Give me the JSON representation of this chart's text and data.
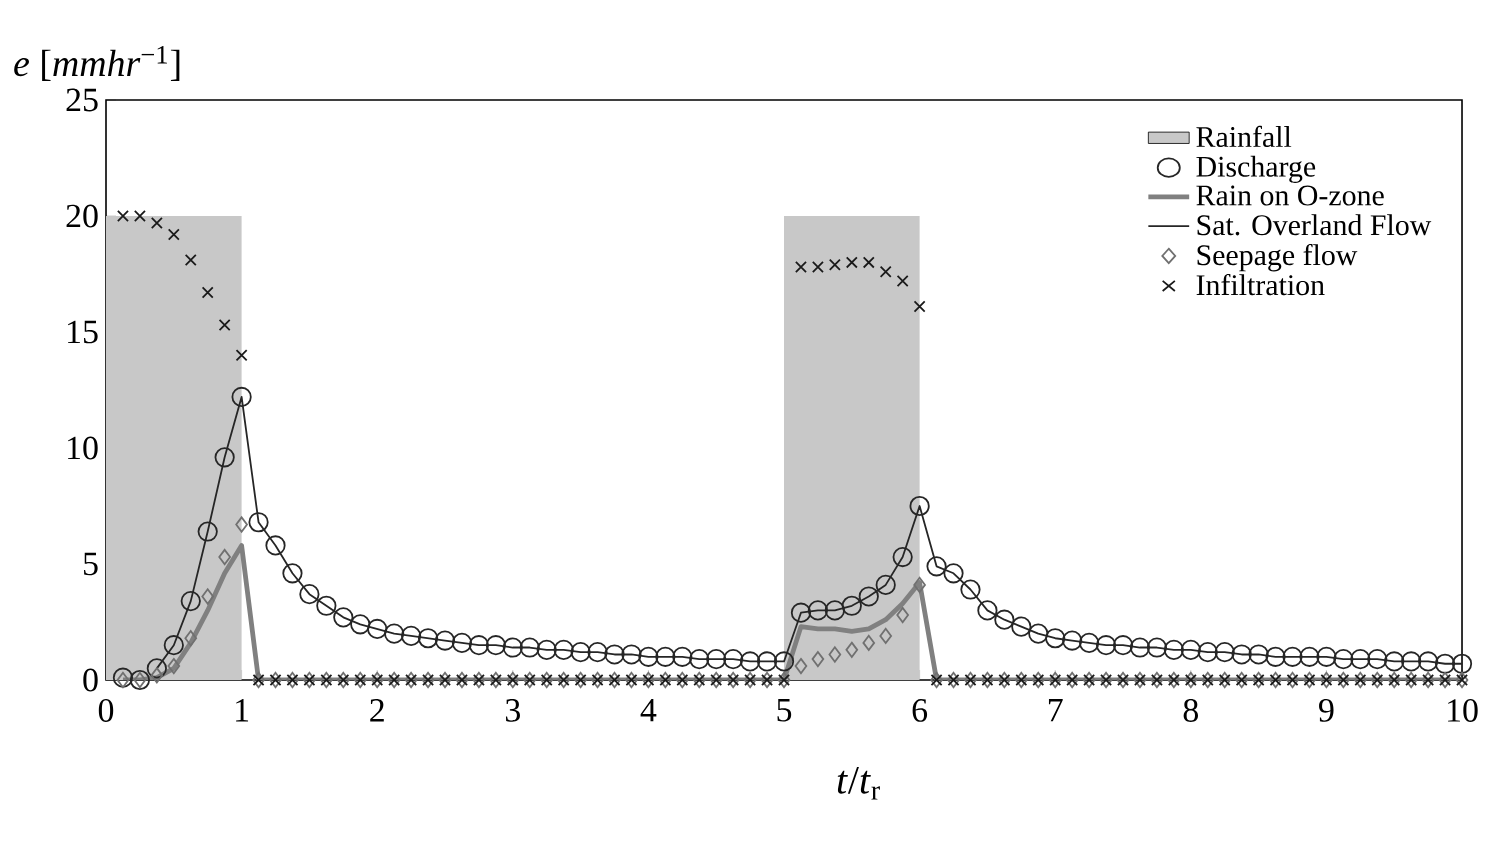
{
  "chart_data": {
    "type": "line",
    "xlabel": "*t*/*t*$_{r}$",
    "ylabel": "*e* [*mmhr*$^{−1}$]",
    "xlim": [
      0,
      10
    ],
    "ylim": [
      0,
      25
    ],
    "xticks": [
      0,
      1,
      2,
      3,
      4,
      5,
      6,
      7,
      8,
      9,
      10
    ],
    "yticks": [
      0,
      5,
      10,
      15,
      20,
      25
    ],
    "legend": "top right",
    "x": [
      0.125,
      0.25,
      0.375,
      0.5,
      0.625,
      0.75,
      0.875,
      1,
      1.125,
      1.25,
      1.375,
      1.5,
      1.625,
      1.75,
      1.875,
      2,
      2.125,
      2.25,
      2.375,
      2.5,
      2.625,
      2.75,
      2.875,
      3,
      3.125,
      3.25,
      3.375,
      3.5,
      3.625,
      3.75,
      3.875,
      4,
      4.125,
      4.25,
      4.375,
      4.5,
      4.625,
      4.75,
      4.875,
      5,
      5.125,
      5.25,
      5.375,
      5.5,
      5.625,
      5.75,
      5.875,
      6,
      6.125,
      6.25,
      6.375,
      6.5,
      6.625,
      6.75,
      6.875,
      7,
      7.125,
      7.25,
      7.375,
      7.5,
      7.625,
      7.75,
      7.875,
      8,
      8.125,
      8.25,
      8.375,
      8.5,
      8.625,
      8.75,
      8.875,
      9,
      9.125,
      9.25,
      9.375,
      9.5,
      9.625,
      9.75,
      9.875,
      10
    ],
    "series": [
      {
        "name": "Rainfall",
        "type": "area",
        "color": "#c8c8c8",
        "x": [
          0,
          1,
          3,
          5,
          6
        ],
        "values": [
          20,
          20,
          null,
          20,
          20
        ]
      },
      {
        "name": "Discharge",
        "type": "scatter",
        "marker": "circle",
        "color": "#262626",
        "values": [
          0.1,
          0,
          0.5,
          1.5,
          3.4,
          6.4,
          9.6,
          12.2,
          6.8,
          5.8,
          4.6,
          3.7,
          3.2,
          2.7,
          2.4,
          2.2,
          2.0,
          1.9,
          1.8,
          1.7,
          1.6,
          1.5,
          1.5,
          1.4,
          1.4,
          1.3,
          1.3,
          1.2,
          1.2,
          1.1,
          1.1,
          1.0,
          1.0,
          1.0,
          0.9,
          0.9,
          0.9,
          0.8,
          0.8,
          0.8,
          2.9,
          3.0,
          3.0,
          3.2,
          3.6,
          4.1,
          5.3,
          7.5,
          4.9,
          4.6,
          3.9,
          3.0,
          2.6,
          2.3,
          2.0,
          1.8,
          1.7,
          1.6,
          1.5,
          1.5,
          1.4,
          1.4,
          1.3,
          1.3,
          1.2,
          1.2,
          1.1,
          1.1,
          1.0,
          1.0,
          1.0,
          1.0,
          0.9,
          0.9,
          0.9,
          0.8,
          0.8,
          0.8,
          0.7,
          0.7
        ]
      },
      {
        "name": "Rain on O-zone",
        "line_style": "solid",
        "color": "#808080",
        "values": [
          0,
          0,
          0.1,
          0.5,
          1.6,
          3.0,
          4.6,
          5.8,
          0,
          0,
          0,
          0,
          0,
          0,
          0,
          0,
          0,
          0,
          0,
          0,
          0,
          0,
          0,
          0,
          0,
          0,
          0,
          0,
          0,
          0,
          0,
          0,
          0,
          0,
          0,
          0,
          0,
          0,
          0,
          0,
          2.3,
          2.2,
          2.2,
          2.1,
          2.2,
          2.6,
          3.3,
          4.2,
          0,
          0,
          0,
          0,
          0,
          0,
          0,
          0,
          0,
          0,
          0,
          0,
          0,
          0,
          0,
          0,
          0,
          0,
          0,
          0,
          0,
          0,
          0,
          0,
          0,
          0,
          0,
          0,
          0,
          0,
          0,
          0
        ]
      },
      {
        "name": "Sat. Overland Flow",
        "line_style": "solid",
        "color": "#262626",
        "values": [
          null,
          null,
          0.5,
          1.5,
          3.4,
          6.4,
          9.6,
          12.2,
          6.8,
          5.8,
          4.6,
          3.7,
          3.2,
          2.7,
          2.4,
          2.2,
          2.0,
          1.9,
          1.8,
          1.7,
          1.6,
          1.5,
          1.5,
          1.4,
          1.4,
          1.3,
          1.3,
          1.2,
          1.2,
          1.1,
          1.1,
          1.0,
          1.0,
          1.0,
          0.9,
          0.9,
          0.9,
          0.8,
          0.8,
          0.8,
          2.9,
          3.0,
          3.0,
          3.2,
          3.6,
          4.1,
          5.3,
          7.5,
          4.9,
          4.6,
          3.9,
          3.0,
          2.6,
          2.3,
          2.0,
          1.8,
          1.7,
          1.6,
          1.5,
          1.5,
          1.4,
          1.4,
          1.3,
          1.3,
          1.2,
          1.2,
          1.1,
          1.1,
          1.0,
          1.0,
          1.0,
          1.0,
          0.9,
          0.9,
          0.9,
          0.8,
          0.8,
          0.8,
          0.7,
          0.7
        ]
      },
      {
        "name": "Seepage flow",
        "type": "scatter",
        "marker": "diamond",
        "color": "#707070",
        "values": [
          0,
          0,
          0.2,
          0.6,
          1.8,
          3.6,
          5.3,
          6.7,
          0,
          0,
          0,
          0,
          0,
          0,
          0,
          0,
          0,
          0,
          0,
          0,
          0,
          0,
          0,
          0,
          0,
          0,
          0,
          0,
          0,
          0,
          0,
          0,
          0,
          0,
          0,
          0,
          0,
          0,
          0,
          0,
          0.6,
          0.9,
          1.1,
          1.3,
          1.6,
          1.9,
          2.8,
          4.1,
          0,
          0,
          0,
          0,
          0,
          0,
          0,
          0,
          0,
          0,
          0,
          0,
          0,
          0,
          0,
          0,
          0,
          0,
          0,
          0,
          0,
          0,
          0,
          0,
          0,
          0,
          0,
          0,
          0,
          0,
          0,
          0
        ]
      },
      {
        "name": "Infiltration",
        "type": "scatter",
        "marker": "cross",
        "color": "#1a1a1a",
        "values": [
          20,
          20,
          19.7,
          19.2,
          18.1,
          16.7,
          15.3,
          14.0,
          0,
          0,
          0,
          0,
          0,
          0,
          0,
          0,
          0,
          0,
          0,
          0,
          0,
          0,
          0,
          0,
          0,
          0,
          0,
          0,
          0,
          0,
          0,
          0,
          0,
          0,
          0,
          0,
          0,
          0,
          0,
          0,
          17.8,
          17.8,
          17.9,
          18.0,
          18.0,
          17.6,
          17.2,
          16.1,
          0,
          0,
          0,
          0,
          0,
          0,
          0,
          0,
          0,
          0,
          0,
          0,
          0,
          0,
          0,
          0,
          0,
          0,
          0,
          0,
          0,
          0,
          0,
          0,
          0,
          0,
          0,
          0,
          0,
          0,
          0,
          0
        ]
      }
    ]
  }
}
